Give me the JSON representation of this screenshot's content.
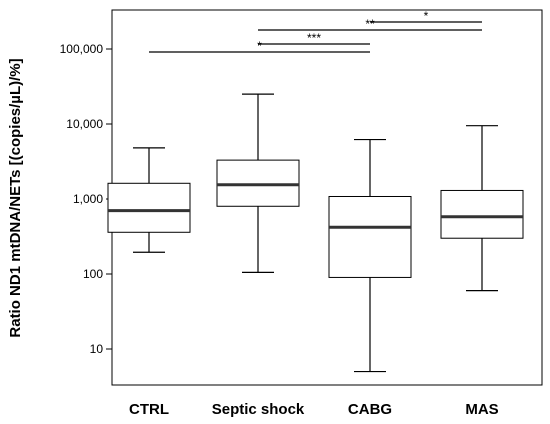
{
  "chart_data": {
    "type": "boxplot",
    "ylabel": "Ratio ND1 mtDNA/NETs [(copies/µL)/%]",
    "yscale": "log",
    "ylim": [
      3,
      300000
    ],
    "yticks": [
      {
        "value": 10,
        "label": "10"
      },
      {
        "value": 100,
        "label": "100"
      },
      {
        "value": 1000,
        "label": "1,000"
      },
      {
        "value": 10000,
        "label": "10,000"
      },
      {
        "value": 100000,
        "label": "100,000"
      }
    ],
    "categories": [
      "CTRL",
      "Septic shock",
      "CABG",
      "MAS"
    ],
    "boxes": [
      {
        "category": "CTRL",
        "min": 195,
        "q1": 360,
        "median": 700,
        "q3": 1620,
        "max": 4800
      },
      {
        "category": "Septic shock",
        "min": 105,
        "q1": 800,
        "median": 1550,
        "q3": 3300,
        "max": 25000
      },
      {
        "category": "CABG",
        "min": 5,
        "q1": 90,
        "median": 420,
        "q3": 1080,
        "max": 6200
      },
      {
        "category": "MAS",
        "min": 60,
        "q1": 300,
        "median": 580,
        "q3": 1300,
        "max": 9500
      }
    ],
    "significance": [
      {
        "from": "CTRL",
        "to": "CABG",
        "label": "*",
        "level": 0
      },
      {
        "from": "Septic shock",
        "to": "CABG",
        "label": "***",
        "level": 1
      },
      {
        "from": "Septic shock",
        "to": "MAS",
        "label": "**",
        "level": 2
      },
      {
        "from": "CABG",
        "to": "MAS",
        "label": "*",
        "level": 3
      }
    ]
  }
}
